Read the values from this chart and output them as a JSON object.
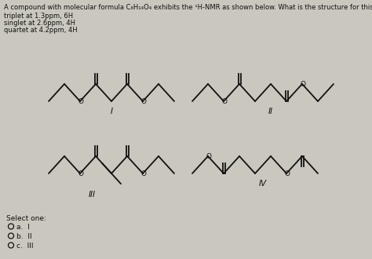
{
  "title_line": "A compound with molecular formula C₈H₁₄O₄ exhibits the ¹H-NMR as shown below. What is the structure for this compound?",
  "nmr_lines": [
    "triplet at 1.3ppm, 6H",
    "singlet at 2.6ppm, 4H",
    "quartet at 4.2ppm, 4H"
  ],
  "select_one": "Select one:",
  "options": [
    "a.  I",
    "b.  II",
    "c.  III"
  ],
  "bg_color": "#cac7be",
  "text_color": "#111111",
  "structure_color": "#111111",
  "label_I": "I",
  "label_II": "II",
  "label_III": "III",
  "label_IV": "IV",
  "fig_w": 4.74,
  "fig_h": 3.3,
  "dpi": 100
}
